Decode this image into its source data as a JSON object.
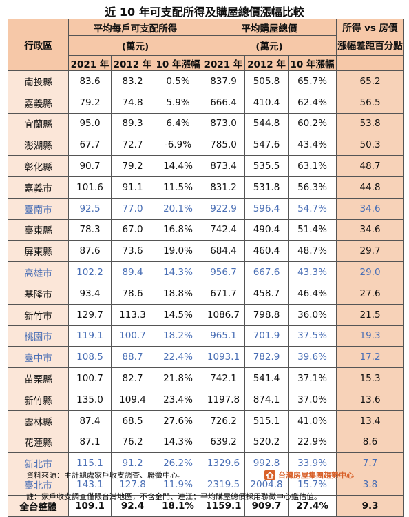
{
  "title": "近 10 年可支配所得及購屋總價漲幅比較",
  "headers": {
    "region": "行政區",
    "income_group": "平均每戶可支配所得",
    "income_unit": "(萬元)",
    "price_group": "平均購屋總價",
    "price_unit": "(萬元)",
    "diff_line1": "所得 vs 房價",
    "diff_line2": "漲幅差距百分點",
    "y2021": "2021 年",
    "y2012": "2012 年",
    "growth": "10 年漲幅"
  },
  "rows": [
    {
      "name": "南投縣",
      "i21": "83.6",
      "i12": "83.2",
      "ig": "0.5%",
      "p21": "837.9",
      "p12": "505.8",
      "pg": "65.7%",
      "diff": "65.2",
      "hl": false
    },
    {
      "name": "嘉義縣",
      "i21": "79.2",
      "i12": "74.8",
      "ig": "5.9%",
      "p21": "666.4",
      "p12": "410.4",
      "pg": "62.4%",
      "diff": "56.5",
      "hl": false
    },
    {
      "name": "宜蘭縣",
      "i21": "95.0",
      "i12": "89.3",
      "ig": "6.4%",
      "p21": "873.0",
      "p12": "544.8",
      "pg": "60.2%",
      "diff": "53.8",
      "hl": false
    },
    {
      "name": "澎湖縣",
      "i21": "67.7",
      "i12": "72.7",
      "ig": "-6.9%",
      "p21": "785.0",
      "p12": "547.6",
      "pg": "43.4%",
      "diff": "50.3",
      "hl": false
    },
    {
      "name": "彰化縣",
      "i21": "90.7",
      "i12": "79.2",
      "ig": "14.4%",
      "p21": "873.4",
      "p12": "535.5",
      "pg": "63.1%",
      "diff": "48.7",
      "hl": false
    },
    {
      "name": "嘉義市",
      "i21": "101.6",
      "i12": "91.1",
      "ig": "11.5%",
      "p21": "831.2",
      "p12": "531.8",
      "pg": "56.3%",
      "diff": "44.8",
      "hl": false
    },
    {
      "name": "臺南市",
      "i21": "92.5",
      "i12": "77.0",
      "ig": "20.1%",
      "p21": "922.9",
      "p12": "596.4",
      "pg": "54.7%",
      "diff": "34.6",
      "hl": true
    },
    {
      "name": "臺東縣",
      "i21": "78.3",
      "i12": "67.0",
      "ig": "16.8%",
      "p21": "742.4",
      "p12": "490.4",
      "pg": "51.4%",
      "diff": "34.6",
      "hl": false
    },
    {
      "name": "屏東縣",
      "i21": "87.6",
      "i12": "73.6",
      "ig": "19.0%",
      "p21": "684.4",
      "p12": "460.4",
      "pg": "48.7%",
      "diff": "29.7",
      "hl": false
    },
    {
      "name": "高雄市",
      "i21": "102.2",
      "i12": "89.4",
      "ig": "14.3%",
      "p21": "956.7",
      "p12": "667.6",
      "pg": "43.3%",
      "diff": "29.0",
      "hl": true
    },
    {
      "name": "基隆市",
      "i21": "93.4",
      "i12": "78.6",
      "ig": "18.8%",
      "p21": "671.7",
      "p12": "458.7",
      "pg": "46.4%",
      "diff": "27.6",
      "hl": false
    },
    {
      "name": "新竹市",
      "i21": "129.7",
      "i12": "113.3",
      "ig": "14.5%",
      "p21": "1086.7",
      "p12": "798.8",
      "pg": "36.0%",
      "diff": "21.5",
      "hl": false
    },
    {
      "name": "桃園市",
      "i21": "119.1",
      "i12": "100.7",
      "ig": "18.2%",
      "p21": "965.1",
      "p12": "701.9",
      "pg": "37.5%",
      "diff": "19.3",
      "hl": true
    },
    {
      "name": "臺中市",
      "i21": "108.5",
      "i12": "88.7",
      "ig": "22.4%",
      "p21": "1093.1",
      "p12": "782.9",
      "pg": "39.6%",
      "diff": "17.2",
      "hl": true
    },
    {
      "name": "苗栗縣",
      "i21": "100.7",
      "i12": "82.7",
      "ig": "21.8%",
      "p21": "742.1",
      "p12": "541.4",
      "pg": "37.1%",
      "diff": "15.3",
      "hl": false
    },
    {
      "name": "新竹縣",
      "i21": "135.0",
      "i12": "109.4",
      "ig": "23.4%",
      "p21": "1197.8",
      "p12": "874.1",
      "pg": "37.0%",
      "diff": "13.6",
      "hl": false
    },
    {
      "name": "雲林縣",
      "i21": "87.4",
      "i12": "68.5",
      "ig": "27.6%",
      "p21": "726.2",
      "p12": "515.1",
      "pg": "41.0%",
      "diff": "13.4",
      "hl": false
    },
    {
      "name": "花蓮縣",
      "i21": "87.1",
      "i12": "76.2",
      "ig": "14.3%",
      "p21": "639.2",
      "p12": "520.2",
      "pg": "22.9%",
      "diff": "8.6",
      "hl": false
    },
    {
      "name": "新北市",
      "i21": "115.1",
      "i12": "91.2",
      "ig": "26.2%",
      "p21": "1329.6",
      "p12": "992.8",
      "pg": "33.9%",
      "diff": "7.7",
      "hl": true
    },
    {
      "name": "臺北市",
      "i21": "143.1",
      "i12": "127.8",
      "ig": "11.9%",
      "p21": "2319.5",
      "p12": "2004.8",
      "pg": "15.7%",
      "diff": "3.8",
      "hl": true
    }
  ],
  "total": {
    "name": "全台整體",
    "i21": "109.1",
    "i12": "92.4",
    "ig": "18.1%",
    "p21": "1159.1",
    "p12": "909.7",
    "pg": "27.4%",
    "diff": "9.3"
  },
  "footer": {
    "source": "資料來源：主計總處家戶收支調查、聯徵中心。",
    "note": "註：家戶收支調查僅限台灣地區，不含金門、連江；平均購屋總價採用聯徵中心鑑估值。",
    "brand": "台灣房屋集團趨勢中心",
    "brand_color": "#d8612a"
  }
}
